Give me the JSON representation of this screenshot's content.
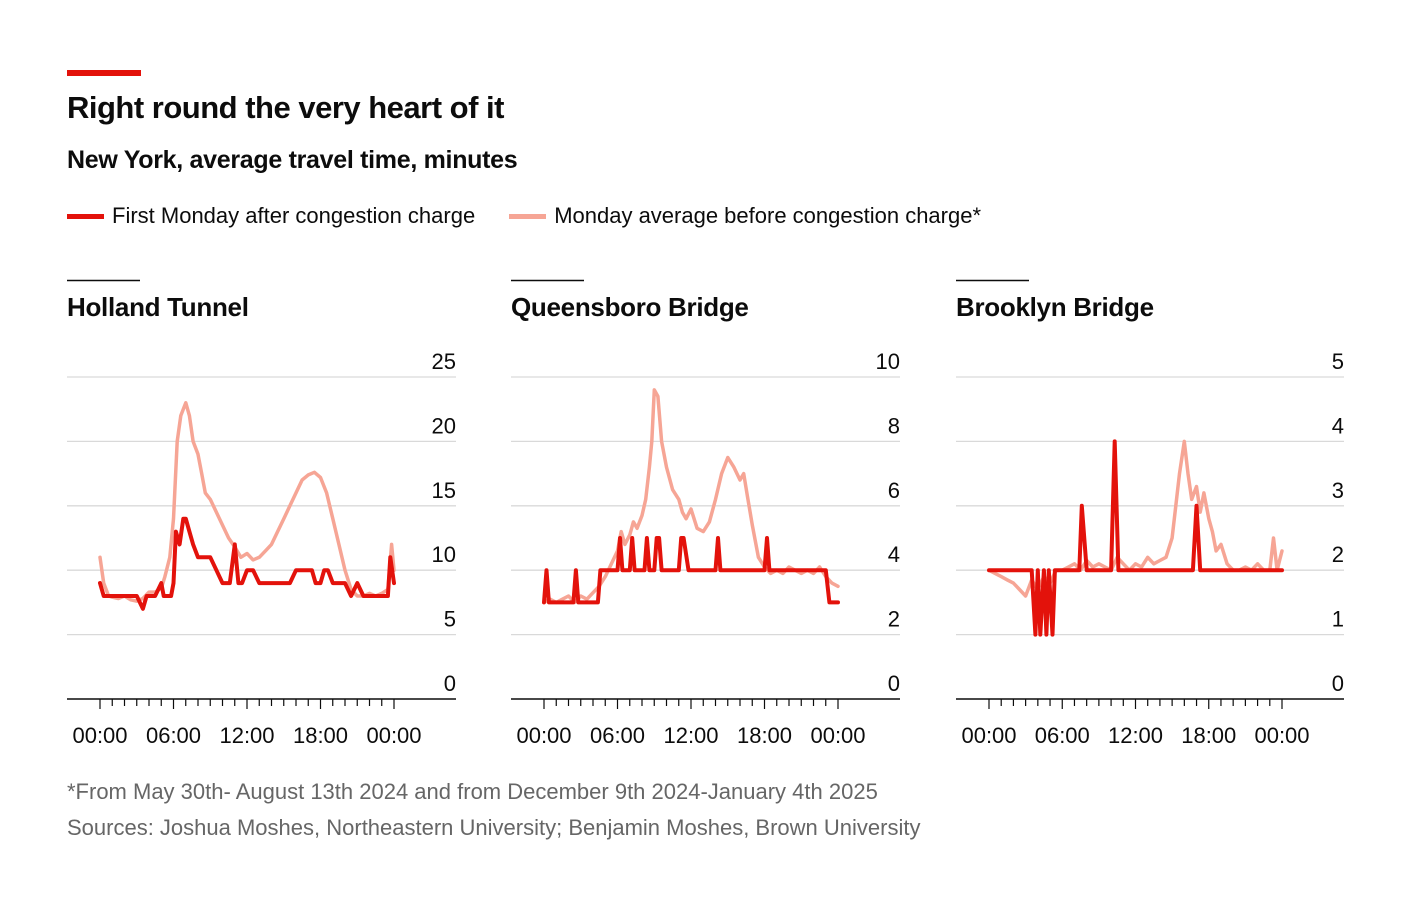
{
  "header": {
    "title": "Right round the very heart of it",
    "subtitle": "New York, average travel time, minutes"
  },
  "legend": {
    "after_label": "First Monday after congestion charge",
    "before_label": "Monday average before congestion charge*"
  },
  "colors": {
    "accent": "#e3120b",
    "after": "#e3120b",
    "before": "#f6a595",
    "grid": "#d9d9d9",
    "axis": "#0c0c0c",
    "note": "#666666"
  },
  "footer": {
    "footnote": "*From May 30th- August 13th 2024 and from December 9th 2024-January 4th 2025",
    "sources": "Sources: Joshua Moshes, Northeastern University; Benjamin Moshes, Brown University"
  },
  "chart_data": [
    {
      "type": "line",
      "title": "Holland Tunnel",
      "xlabel": "",
      "ylabel": "minutes",
      "ylim": [
        0,
        25
      ],
      "yticks": [
        0,
        5,
        10,
        15,
        20,
        25
      ],
      "xlim": [
        0,
        24
      ],
      "xticks": [
        0,
        6,
        12,
        18,
        24
      ],
      "xtick_labels": [
        "00:00",
        "06:00",
        "12:00",
        "18:00",
        "00:00"
      ],
      "series": [
        {
          "name": "Monday average before congestion charge*",
          "x": [
            0,
            0.3,
            0.7,
            1,
            1.5,
            2,
            2.5,
            3,
            3.5,
            4,
            4.5,
            5,
            5.3,
            5.7,
            6,
            6.3,
            6.6,
            7,
            7.3,
            7.6,
            8,
            8.3,
            8.6,
            9,
            9.5,
            10,
            10.5,
            11,
            11.5,
            12,
            12.5,
            13,
            13.5,
            14,
            14.5,
            15,
            15.5,
            16,
            16.5,
            17,
            17.5,
            18,
            18.5,
            19,
            19.5,
            20,
            20.5,
            21,
            21.5,
            22,
            22.5,
            23,
            23.5,
            23.8,
            24
          ],
          "values": [
            11,
            9,
            8,
            7.9,
            7.8,
            8,
            7.7,
            7.6,
            7.8,
            8.3,
            8.3,
            8.6,
            9.5,
            11,
            14,
            20,
            22,
            23,
            22,
            20,
            19,
            17.5,
            16,
            15.5,
            14.5,
            13.5,
            12.5,
            11.8,
            11,
            11.3,
            10.8,
            11,
            11.5,
            12,
            13,
            14,
            15,
            16,
            17,
            17.4,
            17.6,
            17.2,
            16,
            14,
            12,
            10,
            8.5,
            8,
            8,
            8.2,
            8,
            8.2,
            8.5,
            12,
            10
          ]
        },
        {
          "name": "First Monday after congestion charge",
          "x": [
            0,
            0.3,
            0.7,
            1,
            2,
            3,
            3.5,
            3.8,
            4,
            4.5,
            5,
            5.2,
            5.5,
            5.8,
            6,
            6.2,
            6.5,
            6.8,
            7,
            7.3,
            7.6,
            8,
            8.3,
            8.6,
            9,
            9.5,
            10,
            10.3,
            10.6,
            11,
            11.3,
            11.6,
            12,
            12.5,
            13,
            14,
            15,
            15.5,
            16,
            17,
            17.3,
            17.6,
            18,
            18.3,
            18.6,
            19,
            19.5,
            20,
            20.5,
            21,
            21.5,
            22,
            22.5,
            23,
            23.5,
            23.7,
            24
          ],
          "values": [
            9,
            8,
            8,
            8,
            8,
            8,
            7,
            8,
            8,
            8,
            9,
            8,
            8,
            8,
            9,
            13,
            12,
            14,
            14,
            13,
            12,
            11,
            11,
            11,
            11,
            10,
            9,
            9,
            9,
            12,
            9,
            9,
            10,
            10,
            9,
            9,
            9,
            9,
            10,
            10,
            10,
            9,
            9,
            10,
            10,
            9,
            9,
            9,
            8,
            9,
            8,
            8,
            8,
            8,
            8,
            11,
            9
          ]
        }
      ]
    },
    {
      "type": "line",
      "title": "Queensboro Bridge",
      "xlabel": "",
      "ylabel": "minutes",
      "ylim": [
        0,
        10
      ],
      "yticks": [
        0,
        2,
        4,
        6,
        8,
        10
      ],
      "xlim": [
        0,
        24
      ],
      "xticks": [
        0,
        6,
        12,
        18,
        24
      ],
      "xtick_labels": [
        "00:00",
        "06:00",
        "12:00",
        "18:00",
        "00:00"
      ],
      "series": [
        {
          "name": "Monday average before congestion charge*",
          "x": [
            0,
            0.5,
            1,
            1.5,
            2,
            2.5,
            3,
            3.5,
            4,
            4.5,
            5,
            5.5,
            6,
            6.3,
            6.6,
            7,
            7.3,
            7.6,
            8,
            8.3,
            8.6,
            8.8,
            9,
            9.3,
            9.6,
            10,
            10.5,
            11,
            11.3,
            11.6,
            12,
            12.5,
            13,
            13.5,
            14,
            14.5,
            15,
            15.5,
            16,
            16.3,
            16.6,
            17,
            17.5,
            18,
            18.5,
            19,
            19.5,
            20,
            20.5,
            21,
            21.5,
            22,
            22.5,
            23,
            23.5,
            24
          ],
          "values": [
            3,
            3.1,
            3,
            3.1,
            3.2,
            3,
            3.2,
            3.1,
            3.3,
            3.5,
            3.8,
            4.2,
            4.6,
            5.2,
            4.8,
            5.1,
            5.5,
            5.3,
            5.7,
            6.2,
            7.2,
            8,
            9.6,
            9.4,
            8,
            7.2,
            6.5,
            6.2,
            5.8,
            5.6,
            5.9,
            5.3,
            5.2,
            5.5,
            6.2,
            7,
            7.5,
            7.2,
            6.8,
            7,
            6.3,
            5.4,
            4.4,
            4.1,
            3.9,
            4,
            3.9,
            4.1,
            4,
            3.9,
            4,
            3.9,
            4.1,
            3.8,
            3.6,
            3.5
          ]
        },
        {
          "name": "First Monday after congestion charge",
          "x": [
            0,
            0.2,
            0.4,
            0.6,
            1,
            2,
            2.4,
            2.6,
            2.8,
            3,
            4,
            4.4,
            4.6,
            5,
            6,
            6.2,
            6.4,
            6.6,
            7,
            7.2,
            7.4,
            7.6,
            8,
            8.2,
            8.4,
            8.6,
            9,
            9.2,
            9.4,
            9.6,
            10,
            10.5,
            11,
            11.2,
            11.4,
            11.8,
            12,
            13,
            14,
            14.2,
            14.4,
            14.6,
            15,
            16,
            17,
            18,
            18.2,
            18.4,
            18.6,
            19,
            20,
            21,
            22,
            23,
            23.3,
            23.5,
            24
          ],
          "values": [
            3,
            4,
            3,
            3,
            3,
            3,
            3,
            4,
            3,
            3,
            3,
            3,
            4,
            4,
            4,
            5,
            4,
            4,
            4,
            5,
            4,
            4,
            4,
            4,
            5,
            4,
            4,
            5,
            5,
            4,
            4,
            4,
            4,
            5,
            5,
            4,
            4,
            4,
            4,
            5,
            4,
            4,
            4,
            4,
            4,
            4,
            5,
            4,
            4,
            4,
            4,
            4,
            4,
            4,
            3,
            3,
            3
          ]
        }
      ]
    },
    {
      "type": "line",
      "title": "Brooklyn Bridge",
      "xlabel": "",
      "ylabel": "minutes",
      "ylim": [
        0,
        5
      ],
      "yticks": [
        0,
        1,
        2,
        3,
        4,
        5
      ],
      "xlim": [
        0,
        24
      ],
      "xticks": [
        0,
        6,
        12,
        18,
        24
      ],
      "xtick_labels": [
        "00:00",
        "06:00",
        "12:00",
        "18:00",
        "00:00"
      ],
      "series": [
        {
          "name": "Monday average before congestion charge*",
          "x": [
            0,
            0.5,
            1,
            1.5,
            2,
            2.5,
            3,
            3.5,
            4,
            4.5,
            5,
            5.5,
            6,
            6.5,
            7,
            7.5,
            8,
            8.5,
            9,
            9.5,
            10,
            10.5,
            11,
            11.5,
            12,
            12.5,
            13,
            13.5,
            14,
            14.5,
            15,
            15.3,
            15.6,
            16,
            16.3,
            16.6,
            17,
            17.3,
            17.6,
            18,
            18.3,
            18.6,
            19,
            19.5,
            20,
            20.5,
            21,
            21.5,
            22,
            22.5,
            23,
            23.3,
            23.6,
            24
          ],
          "values": [
            2,
            1.95,
            1.9,
            1.85,
            1.8,
            1.7,
            1.6,
            1.85,
            1.7,
            1.9,
            1.8,
            2,
            2,
            2.05,
            2.1,
            2,
            2.15,
            2.05,
            2.1,
            2.05,
            2,
            2.2,
            2.1,
            2,
            2.1,
            2.05,
            2.2,
            2.1,
            2.15,
            2.2,
            2.5,
            3,
            3.5,
            4,
            3.5,
            3.1,
            3.3,
            2.9,
            3.2,
            2.8,
            2.6,
            2.3,
            2.4,
            2.1,
            2,
            2,
            2.05,
            2,
            2.1,
            2,
            2,
            2.5,
            2,
            2.3
          ]
        },
        {
          "name": "First Monday after congestion charge",
          "x": [
            0,
            2,
            3.5,
            3.8,
            4,
            4.2,
            4.5,
            4.7,
            4.9,
            5.2,
            5.4,
            6,
            7,
            7.4,
            7.6,
            8,
            10,
            10.3,
            10.6,
            11,
            16,
            16.7,
            17,
            17.3,
            18,
            24
          ],
          "values": [
            2,
            2,
            2,
            1,
            2,
            1,
            2,
            1,
            2,
            1,
            2,
            2,
            2,
            2,
            3,
            2,
            2,
            4,
            2,
            2,
            2,
            2,
            3,
            2,
            2,
            2
          ]
        }
      ]
    }
  ]
}
